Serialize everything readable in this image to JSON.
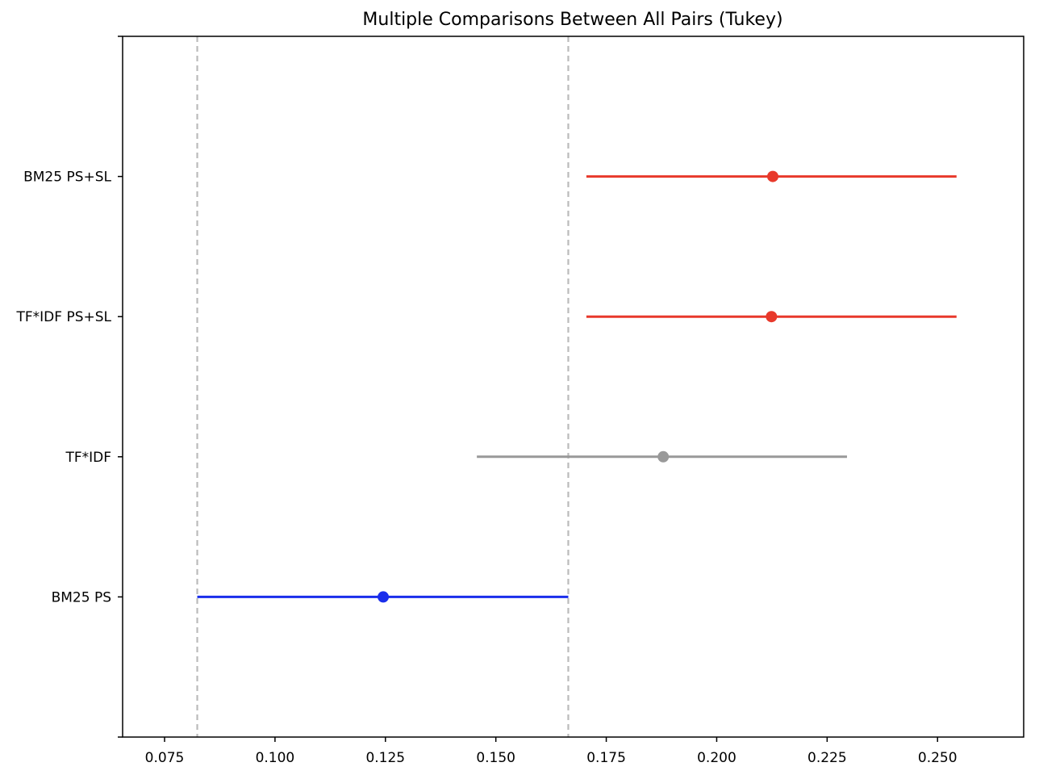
{
  "chart_data": {
    "type": "interval",
    "title": "Multiple Comparisons Between All Pairs (Tukey)",
    "xlabel": "",
    "ylabel": "",
    "xlim": [
      0.0655,
      0.2695
    ],
    "x_ticks": [
      "0.075",
      "0.100",
      "0.125",
      "0.150",
      "0.175",
      "0.200",
      "0.225",
      "0.250"
    ],
    "grid": false,
    "legend": "none",
    "reference_lines": {
      "style": "dashed",
      "color": "#bbbbbb",
      "x": [
        0.0824,
        0.1664
      ]
    },
    "groups": [
      {
        "label": "BM25 PS+SL",
        "mean": 0.2127,
        "lower": 0.1705,
        "upper": 0.2543,
        "color": "#e8392b"
      },
      {
        "label": "TF*IDF PS+SL",
        "mean": 0.2124,
        "lower": 0.1705,
        "upper": 0.2543,
        "color": "#e8392b"
      },
      {
        "label": "TF*IDF",
        "mean": 0.1879,
        "lower": 0.1457,
        "upper": 0.2295,
        "color": "#999999"
      },
      {
        "label": "BM25 PS",
        "mean": 0.1245,
        "lower": 0.0824,
        "upper": 0.1664,
        "color": "#1a2eeb"
      }
    ]
  }
}
